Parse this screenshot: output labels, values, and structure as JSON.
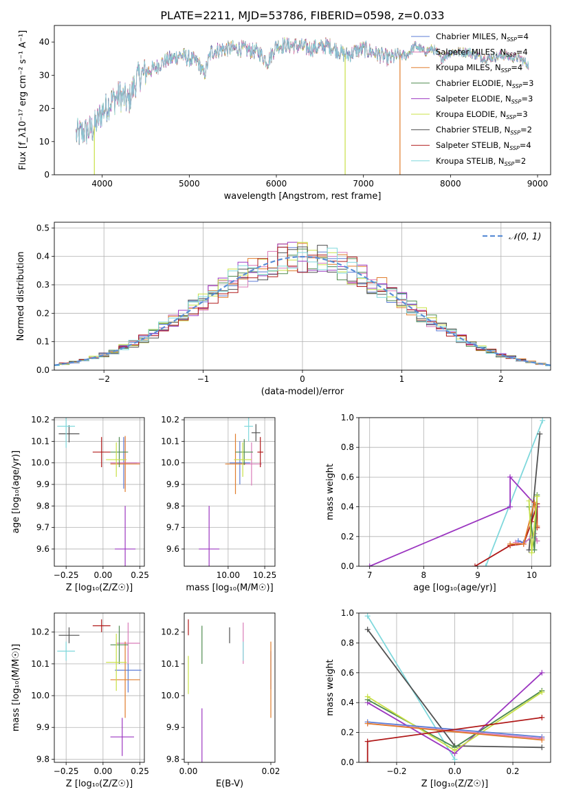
{
  "figure": {
    "title": "PLATE=2211, MJD=53786, FIBERID=0598, z=0.033"
  },
  "colors": {
    "ch_miles": "#5b7bd5",
    "sa_miles": "#d97ab8",
    "kr_miles": "#e07b2a",
    "ch_elodie": "#4e8a4e",
    "sa_elodie": "#9b35c0",
    "kr_elodie": "#c8e045",
    "ch_stelib": "#505050",
    "sa_stelib": "#b01818",
    "kr_stelib": "#7fd8dc",
    "normal_curve": "#5b8ed6",
    "spectrum": "#3a3a3a"
  },
  "chart_data": [
    {
      "id": "spectrum",
      "type": "line",
      "xlabel": "wavelength [Angstrom, rest frame]",
      "ylabel": "Flux [f_λ10⁻¹⁷ erg cm⁻² s⁻¹ A⁻¹]",
      "xlim": [
        3450,
        9150
      ],
      "ylim": [
        0,
        45
      ],
      "xticks": [
        4000,
        5000,
        6000,
        7000,
        8000,
        9000
      ],
      "yticks": [
        0,
        10,
        20,
        30,
        40
      ],
      "continuum": [
        [
          3700,
          12
        ],
        [
          3800,
          13
        ],
        [
          3900,
          14
        ],
        [
          4000,
          19
        ],
        [
          4100,
          22
        ],
        [
          4200,
          24
        ],
        [
          4300,
          22
        ],
        [
          4400,
          29
        ],
        [
          4500,
          31
        ],
        [
          4600,
          32
        ],
        [
          4700,
          34
        ],
        [
          4800,
          35
        ],
        [
          4900,
          36
        ],
        [
          5000,
          35
        ],
        [
          5100,
          34
        ],
        [
          5170,
          30
        ],
        [
          5250,
          37
        ],
        [
          5400,
          38
        ],
        [
          5600,
          38
        ],
        [
          5800,
          37
        ],
        [
          5900,
          34
        ],
        [
          6000,
          39
        ],
        [
          6200,
          39
        ],
        [
          6400,
          38
        ],
        [
          6600,
          39
        ],
        [
          6800,
          36
        ],
        [
          6900,
          37
        ],
        [
          7000,
          38
        ],
        [
          7100,
          37
        ],
        [
          7200,
          36
        ],
        [
          7300,
          35
        ],
        [
          7400,
          36
        ],
        [
          7500,
          36
        ],
        [
          7600,
          39
        ],
        [
          7700,
          37
        ],
        [
          7800,
          38
        ],
        [
          7900,
          35
        ],
        [
          8000,
          37
        ],
        [
          8200,
          37
        ],
        [
          8400,
          35
        ],
        [
          8600,
          36
        ],
        [
          8800,
          35
        ],
        [
          8900,
          33
        ]
      ],
      "drops": [
        {
          "x": 3910,
          "y": 0,
          "color": "kr_elodie"
        },
        {
          "x": 6790,
          "y": 0,
          "color": "kr_elodie"
        },
        {
          "x": 7420,
          "y": 0,
          "color": "kr_miles"
        }
      ],
      "legend": [
        {
          "name": "Chabrier MILES, N",
          "sub": "SSP",
          "tail": "=4",
          "color": "ch_miles"
        },
        {
          "name": "Salpeter MILES, N",
          "sub": "SSP",
          "tail": "=4",
          "color": "sa_miles"
        },
        {
          "name": "Kroupa MILES, N",
          "sub": "SSP",
          "tail": "=4",
          "color": "kr_miles"
        },
        {
          "name": "Chabrier ELODIE, N",
          "sub": "SSP",
          "tail": "=3",
          "color": "ch_elodie"
        },
        {
          "name": "Salpeter ELODIE, N",
          "sub": "SSP",
          "tail": "=3",
          "color": "sa_elodie"
        },
        {
          "name": "Kroupa ELODIE, N",
          "sub": "SSP",
          "tail": "=3",
          "color": "kr_elodie"
        },
        {
          "name": "Chabrier STELIB, N",
          "sub": "SSP",
          "tail": "=2",
          "color": "ch_stelib"
        },
        {
          "name": "Salpeter STELIB, N",
          "sub": "SSP",
          "tail": "=4",
          "color": "sa_stelib"
        },
        {
          "name": "Kroupa STELIB, N",
          "sub": "SSP",
          "tail": "=2",
          "color": "kr_stelib"
        }
      ]
    },
    {
      "id": "residuals",
      "type": "histogram",
      "xlabel": "(data-model)/error",
      "ylabel": "Normed distribution",
      "xlim": [
        -2.5,
        2.5
      ],
      "ylim": [
        0,
        0.52
      ],
      "xticks": [
        -2,
        -1,
        0,
        1,
        2
      ],
      "yticks": [
        0.0,
        0.1,
        0.2,
        0.3,
        0.4,
        0.5
      ],
      "grid": true,
      "bin_width": 0.1,
      "legend": "𝒩(0, 1)",
      "legend_position": "top-right",
      "normal": {
        "mu": 0,
        "sigma": 1
      }
    },
    {
      "id": "age_vs_Z",
      "type": "errorbar",
      "xlabel": "Z [log₁₀(Z/Z☉)]",
      "ylabel": "age  [log₁₀(age/yr)]",
      "xlim": [
        -0.33,
        0.28
      ],
      "ylim": [
        9.52,
        10.21
      ],
      "xticks": [
        -0.25,
        0.0,
        0.25
      ],
      "yticks": [
        9.6,
        9.7,
        9.8,
        9.9,
        10.0,
        10.1,
        10.2
      ],
      "grid": true,
      "points": [
        {
          "series": "ch_miles",
          "x": 0.14,
          "xerr": 0.09,
          "y": 10.0,
          "yerr": 0.12
        },
        {
          "series": "sa_miles",
          "x": 0.15,
          "xerr": 0.1,
          "y": 10.0,
          "yerr": 0.12
        },
        {
          "series": "kr_miles",
          "x": 0.15,
          "xerr": 0.1,
          "y": 9.995,
          "yerr": 0.13
        },
        {
          "series": "ch_elodie",
          "x": 0.11,
          "xerr": 0.06,
          "y": 10.05,
          "yerr": 0.07
        },
        {
          "series": "sa_elodie",
          "x": 0.15,
          "xerr": 0.07,
          "y": 9.6,
          "yerr": 0.2
        },
        {
          "series": "kr_elodie",
          "x": 0.09,
          "xerr": 0.07,
          "y": 10.015,
          "yerr": 0.08
        },
        {
          "series": "ch_stelib",
          "x": -0.23,
          "xerr": 0.07,
          "y": 10.135,
          "yerr": 0.04
        },
        {
          "series": "sa_stelib",
          "x": -0.01,
          "xerr": 0.06,
          "y": 10.05,
          "yerr": 0.07
        },
        {
          "series": "kr_stelib",
          "x": -0.25,
          "xerr": 0.06,
          "y": 10.17,
          "yerr": 0.1
        }
      ]
    },
    {
      "id": "age_vs_mass",
      "type": "errorbar",
      "xlabel": "mass [log₁₀(M/M☉)]",
      "ylabel": "",
      "xlim": [
        9.7,
        10.32
      ],
      "ylim": [
        9.52,
        10.21
      ],
      "xticks": [
        10.0,
        10.25
      ],
      "yticks": [
        9.6,
        9.7,
        9.8,
        9.9,
        10.0,
        10.1,
        10.2
      ],
      "grid": true,
      "points": [
        {
          "series": "ch_miles",
          "x": 10.08,
          "xerr": 0.07,
          "y": 10.0,
          "yerr": 0.1
        },
        {
          "series": "sa_miles",
          "x": 10.16,
          "xerr": 0.07,
          "y": 9.995,
          "yerr": 0.1
        },
        {
          "series": "kr_miles",
          "x": 10.05,
          "xerr": 0.07,
          "y": 9.995,
          "yerr": 0.14
        },
        {
          "series": "ch_elodie",
          "x": 10.11,
          "xerr": 0.06,
          "y": 10.05,
          "yerr": 0.06
        },
        {
          "series": "sa_elodie",
          "x": 9.87,
          "xerr": 0.07,
          "y": 9.6,
          "yerr": 0.2
        },
        {
          "series": "kr_elodie",
          "x": 10.1,
          "xerr": 0.06,
          "y": 10.015,
          "yerr": 0.08
        },
        {
          "series": "ch_stelib",
          "x": 10.19,
          "xerr": 0.03,
          "y": 10.14,
          "yerr": 0.04
        },
        {
          "series": "sa_stelib",
          "x": 10.22,
          "xerr": 0.02,
          "y": 10.05,
          "yerr": 0.07
        },
        {
          "series": "kr_stelib",
          "x": 10.14,
          "xerr": 0.03,
          "y": 10.17,
          "yerr": 0.07
        }
      ]
    },
    {
      "id": "mass_weight_vs_age",
      "type": "line",
      "xlabel": "age  [log₁₀(age/yr)]",
      "ylabel": "mass weight",
      "xlim": [
        6.8,
        10.35
      ],
      "ylim": [
        0,
        1.0
      ],
      "xticks": [
        7,
        8,
        9,
        10
      ],
      "yticks": [
        0.0,
        0.2,
        0.4,
        0.6,
        0.8,
        1.0
      ],
      "grid": true,
      "series": [
        {
          "series": "kr_stelib",
          "x": [
            9.15,
            10.2
          ],
          "y": [
            0.0,
            0.98
          ]
        },
        {
          "series": "ch_stelib",
          "x": [
            9.95,
            10.15
          ],
          "y": [
            0.11,
            0.89
          ]
        },
        {
          "series": "sa_elodie",
          "x": [
            7.0,
            9.6,
            9.6,
            10.1
          ],
          "y": [
            0.0,
            0.4,
            0.6,
            0.4
          ]
        },
        {
          "series": "sa_stelib",
          "x": [
            8.95,
            9.6,
            9.85,
            10.0,
            10.1,
            10.1
          ],
          "y": [
            0.0,
            0.14,
            0.15,
            0.3,
            0.42,
            0.26
          ]
        },
        {
          "series": "ch_miles",
          "x": [
            9.75,
            9.85,
            10.05,
            10.1
          ],
          "y": [
            0.17,
            0.16,
            0.2,
            0.17
          ]
        },
        {
          "series": "sa_miles",
          "x": [
            9.7,
            9.85,
            10.05,
            10.1
          ],
          "y": [
            0.16,
            0.15,
            0.22,
            0.17
          ]
        },
        {
          "series": "kr_miles",
          "x": [
            9.6,
            9.85,
            10.05,
            10.1
          ],
          "y": [
            0.15,
            0.15,
            0.43,
            0.27
          ]
        },
        {
          "series": "ch_elodie",
          "x": [
            9.95,
            10.05,
            10.1
          ],
          "y": [
            0.4,
            0.11,
            0.48
          ]
        },
        {
          "series": "kr_elodie",
          "x": [
            9.95,
            10.0,
            10.1
          ],
          "y": [
            0.44,
            0.09,
            0.47
          ]
        }
      ]
    },
    {
      "id": "mass_vs_Z",
      "type": "errorbar",
      "xlabel": "Z [log₁₀(Z/Z☉)]",
      "ylabel": "mass [log₁₀(M/M☉)]",
      "xlim": [
        -0.33,
        0.28
      ],
      "ylim": [
        9.79,
        10.26
      ],
      "xticks": [
        -0.25,
        0.0,
        0.25
      ],
      "yticks": [
        9.8,
        9.9,
        10.0,
        10.1,
        10.2
      ],
      "grid": true,
      "points": [
        {
          "series": "ch_miles",
          "x": 0.17,
          "xerr": 0.09,
          "y": 10.08,
          "yerr": 0.07
        },
        {
          "series": "sa_miles",
          "x": 0.17,
          "xerr": 0.08,
          "y": 10.165,
          "yerr": 0.065
        },
        {
          "series": "kr_miles",
          "x": 0.15,
          "xerr": 0.1,
          "y": 10.05,
          "yerr": 0.12
        },
        {
          "series": "ch_elodie",
          "x": 0.11,
          "xerr": 0.06,
          "y": 10.16,
          "yerr": 0.06
        },
        {
          "series": "sa_elodie",
          "x": 0.13,
          "xerr": 0.08,
          "y": 9.87,
          "yerr": 0.06
        },
        {
          "series": "kr_elodie",
          "x": 0.09,
          "xerr": 0.07,
          "y": 10.105,
          "yerr": 0.09
        },
        {
          "series": "ch_stelib",
          "x": -0.23,
          "xerr": 0.07,
          "y": 10.19,
          "yerr": 0.025
        },
        {
          "series": "sa_stelib",
          "x": -0.01,
          "xerr": 0.06,
          "y": 10.22,
          "yerr": 0.02
        },
        {
          "series": "kr_stelib",
          "x": -0.25,
          "xerr": 0.06,
          "y": 10.14,
          "yerr": 0.03
        }
      ]
    },
    {
      "id": "mass_vs_EBV",
      "type": "errorbar",
      "xlabel": "E(B-V)",
      "ylabel": "",
      "xlim": [
        -0.001,
        0.021
      ],
      "ylim": [
        9.79,
        10.26
      ],
      "xticks": [
        0.0,
        0.02
      ],
      "yticks": [
        9.8,
        9.9,
        10.0,
        10.1,
        10.2
      ],
      "grid": false,
      "points": [
        {
          "series": "ch_miles",
          "x": 0.02,
          "xerr": 0,
          "y": 10.08,
          "yerr": 0.06
        },
        {
          "series": "sa_miles",
          "x": 0.0133,
          "xerr": 0,
          "y": 10.165,
          "yerr": 0.065
        },
        {
          "series": "kr_miles",
          "x": 0.02,
          "xerr": 0,
          "y": 10.05,
          "yerr": 0.12
        },
        {
          "series": "ch_elodie",
          "x": 0.0033,
          "xerr": 0,
          "y": 10.16,
          "yerr": 0.06
        },
        {
          "series": "sa_elodie",
          "x": 0.0033,
          "xerr": 0,
          "y": 9.87,
          "yerr": 0.09
        },
        {
          "series": "kr_elodie",
          "x": 0.0,
          "xerr": 0,
          "y": 10.065,
          "yerr": 0.06
        },
        {
          "series": "ch_stelib",
          "x": 0.01,
          "xerr": 0,
          "y": 10.19,
          "yerr": 0.025
        },
        {
          "series": "sa_stelib",
          "x": 0.0,
          "xerr": 0,
          "y": 10.215,
          "yerr": 0.025
        },
        {
          "series": "kr_stelib",
          "x": 0.0133,
          "xerr": 0,
          "y": 10.14,
          "yerr": 0.03
        }
      ]
    },
    {
      "id": "mass_weight_vs_Z",
      "type": "line",
      "xlabel": "Z [log₁₀(Z/Z☉)]",
      "ylabel": "mass weight",
      "xlim": [
        -0.33,
        0.33
      ],
      "ylim": [
        0,
        1.0
      ],
      "xticks": [
        -0.2,
        0.0,
        0.2
      ],
      "yticks": [
        0.0,
        0.2,
        0.4,
        0.6,
        0.8,
        1.0
      ],
      "grid": true,
      "series": [
        {
          "series": "kr_stelib",
          "x": [
            -0.3,
            0.0
          ],
          "y": [
            0.98,
            0.02
          ]
        },
        {
          "series": "ch_stelib",
          "x": [
            -0.3,
            0.0,
            0.3
          ],
          "y": [
            0.89,
            0.11,
            0.1
          ]
        },
        {
          "series": "sa_elodie",
          "x": [
            -0.3,
            0.0,
            0.3
          ],
          "y": [
            0.4,
            0.06,
            0.6
          ]
        },
        {
          "series": "ch_elodie",
          "x": [
            -0.3,
            0.0,
            0.3
          ],
          "y": [
            0.42,
            0.1,
            0.48
          ]
        },
        {
          "series": "kr_elodie",
          "x": [
            -0.3,
            0.0,
            0.3
          ],
          "y": [
            0.44,
            0.08,
            0.47
          ]
        },
        {
          "series": "ch_miles",
          "x": [
            -0.3,
            0.3
          ],
          "y": [
            0.27,
            0.17
          ]
        },
        {
          "series": "sa_miles",
          "x": [
            -0.3,
            0.3
          ],
          "y": [
            0.26,
            0.16
          ]
        },
        {
          "series": "kr_miles",
          "x": [
            -0.3,
            0.3
          ],
          "y": [
            0.26,
            0.15
          ]
        },
        {
          "series": "sa_stelib",
          "x": [
            -0.3,
            -0.3,
            0.3
          ],
          "y": [
            0.0,
            0.14,
            0.3
          ]
        }
      ]
    }
  ]
}
